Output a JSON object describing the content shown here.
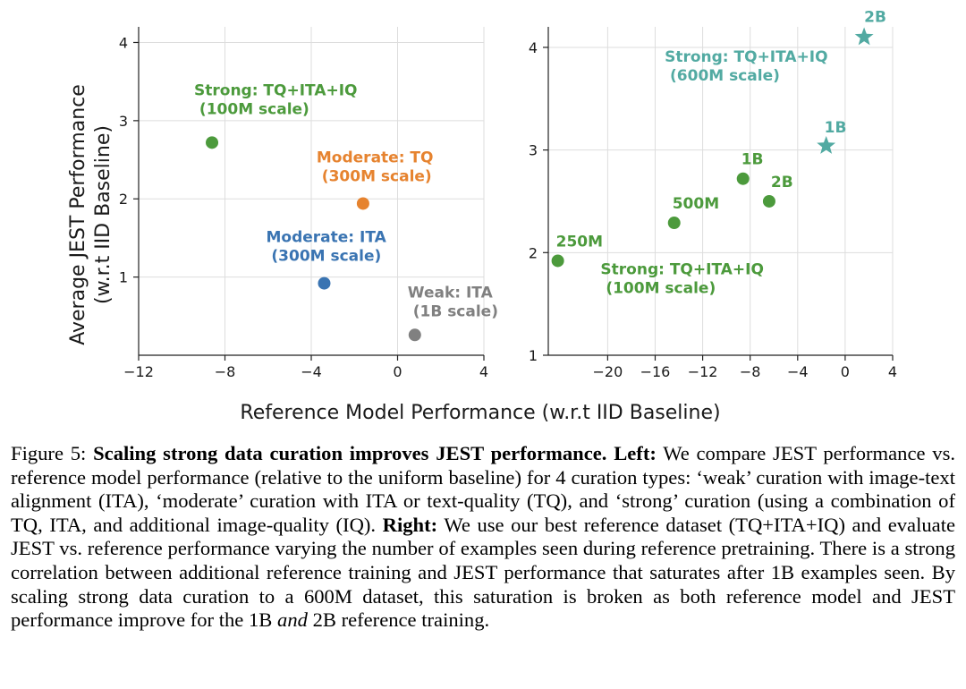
{
  "chart_data": [
    {
      "type": "scatter",
      "panel": "left",
      "title": "",
      "xlabel": "Reference Model Performance (w.r.t IID Baseline)",
      "ylabel_lines": [
        "Average JEST Performance",
        "(w.r.t IID Baseline)"
      ],
      "xlim": [
        -12,
        4
      ],
      "ylim": [
        0,
        4.2
      ],
      "xticks": [
        -12,
        -8,
        -4,
        0,
        4
      ],
      "xtick_labels": [
        "−12",
        "−8",
        "−4",
        "0",
        "4"
      ],
      "yticks": [
        1,
        2,
        3,
        4
      ],
      "ytick_labels": [
        "1",
        "2",
        "3",
        "4"
      ],
      "grid": true,
      "points": [
        {
          "name": "strong",
          "x": -8.6,
          "y": 2.72,
          "color": "#4c9a3c",
          "marker": "circle",
          "label_lines": [
            "Strong: TQ+ITA+IQ",
            " (100M scale)"
          ]
        },
        {
          "name": "moderate-tq",
          "x": -1.6,
          "y": 1.94,
          "color": "#e6832f",
          "marker": "circle",
          "label_lines": [
            "Moderate: TQ",
            " (300M scale)"
          ]
        },
        {
          "name": "moderate-ita",
          "x": -3.4,
          "y": 0.92,
          "color": "#3a74b2",
          "marker": "circle",
          "label_lines": [
            "Moderate: ITA",
            " (300M scale)"
          ]
        },
        {
          "name": "weak",
          "x": 0.8,
          "y": 0.26,
          "color": "#808080",
          "marker": "circle",
          "label_lines": [
            "Weak: ITA",
            " (1B scale)"
          ]
        }
      ]
    },
    {
      "type": "scatter",
      "panel": "right",
      "title": "",
      "xlabel": "Reference Model Performance (w.r.t IID Baseline)",
      "xlim": [
        -25,
        4
      ],
      "ylim": [
        1,
        4.2
      ],
      "xticks": [
        -20,
        -16,
        -12,
        -8,
        -4,
        0,
        4
      ],
      "xtick_labels": [
        "−20",
        "−16",
        "−12",
        "−8",
        "−4",
        "0",
        "4"
      ],
      "yticks": [
        1,
        2,
        3,
        4
      ],
      "ytick_labels": [
        "1",
        "2",
        "3",
        "4"
      ],
      "grid": true,
      "series": [
        {
          "name": "Strong: TQ+ITA+IQ (100M scale)",
          "label_lines": [
            "Strong: TQ+ITA+IQ",
            " (100M scale)"
          ],
          "color": "#4c9a3c",
          "marker": "circle",
          "points": [
            {
              "x": -24.2,
              "y": 1.92,
              "label": "250M"
            },
            {
              "x": -14.4,
              "y": 2.29,
              "label": "500M"
            },
            {
              "x": -8.6,
              "y": 2.72,
              "label": "1B"
            },
            {
              "x": -6.4,
              "y": 2.5,
              "label": "2B"
            }
          ]
        },
        {
          "name": "Strong: TQ+ITA+IQ (600M scale)",
          "label_lines": [
            "Strong: TQ+ITA+IQ",
            " (600M scale)"
          ],
          "color": "#52aaa2",
          "marker": "star",
          "points": [
            {
              "x": -1.6,
              "y": 3.04,
              "label": "1B"
            },
            {
              "x": 1.6,
              "y": 4.1,
              "label": "2B"
            }
          ]
        }
      ]
    }
  ],
  "caption": {
    "figure_label": "Figure 5:",
    "bold_title": "Scaling strong data curation improves JEST performance.",
    "left_label": "Left:",
    "left_text": "We compare JEST performance vs. reference model performance (relative to the uniform baseline) for 4 curation types: ‘weak’ curation with image-text alignment (ITA), ‘moderate’ curation with ITA or text-quality (TQ), and ‘strong’ curation (using a combination of TQ, ITA, and additional image-quality (IQ).",
    "right_label": "Right:",
    "right_text_a": "We use our best reference dataset (TQ+ITA+IQ) and evaluate JEST vs. reference performance varying the number of examples seen during reference pretraining. There is a strong correlation between additional reference training and JEST performance that saturates after 1B examples seen. By scaling strong data curation to a 600M dataset, this saturation is broken as both reference model and JEST performance improve for the 1B",
    "and_word": "and",
    "right_text_b": "2B reference training."
  }
}
